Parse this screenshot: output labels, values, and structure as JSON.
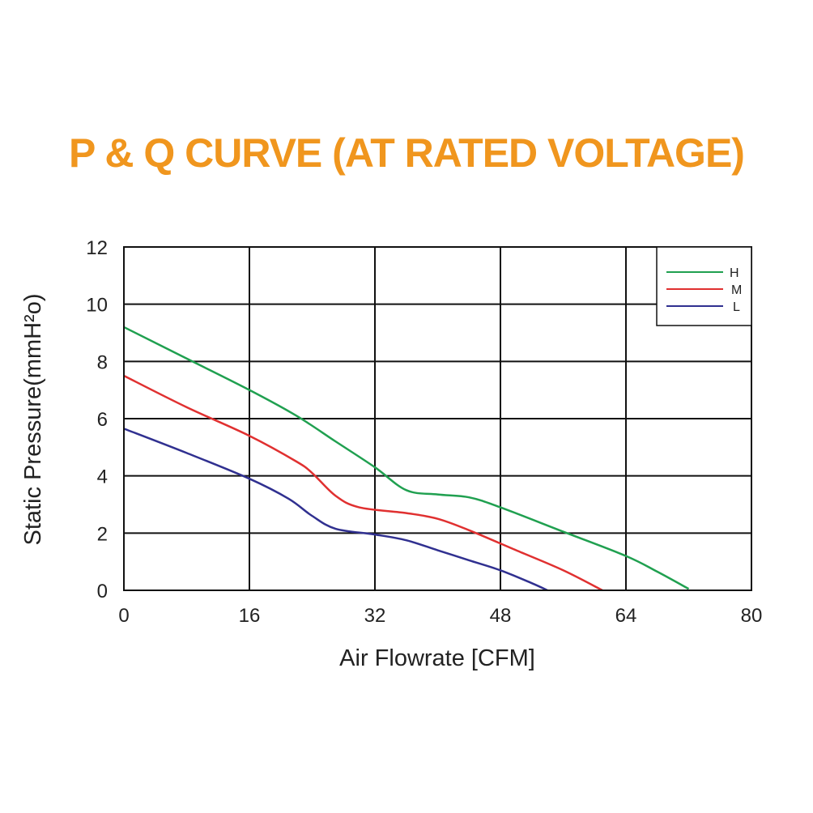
{
  "chart_data": {
    "type": "line",
    "title": "P & Q CURVE (AT RATED VOLTAGE)",
    "xlabel": "Air  Flowrate   [CFM]",
    "ylabel": "Static Pressure(mmH²o)",
    "xlim": [
      0,
      80
    ],
    "ylim": [
      0,
      12
    ],
    "xticks": [
      "0",
      "16",
      "32",
      "48",
      "64",
      "80"
    ],
    "yticks": [
      "0",
      "2",
      "4",
      "6",
      "8",
      "10",
      "12"
    ],
    "grid": true,
    "legend": "top-right",
    "series": [
      {
        "name": "H",
        "color": "#20a050",
        "points": [
          [
            0,
            9.2
          ],
          [
            8,
            8.1
          ],
          [
            16,
            7.0
          ],
          [
            22,
            6.1
          ],
          [
            27,
            5.2
          ],
          [
            32,
            4.3
          ],
          [
            36,
            3.5
          ],
          [
            40,
            3.35
          ],
          [
            44,
            3.25
          ],
          [
            48,
            2.9
          ],
          [
            56,
            2.05
          ],
          [
            64,
            1.2
          ],
          [
            68,
            0.65
          ],
          [
            72,
            0.05
          ]
        ]
      },
      {
        "name": "M",
        "color": "#e03030",
        "points": [
          [
            0,
            7.5
          ],
          [
            8,
            6.4
          ],
          [
            16,
            5.4
          ],
          [
            22,
            4.5
          ],
          [
            24,
            4.1
          ],
          [
            27,
            3.3
          ],
          [
            30,
            2.9
          ],
          [
            36,
            2.7
          ],
          [
            40,
            2.5
          ],
          [
            44,
            2.1
          ],
          [
            50,
            1.4
          ],
          [
            56,
            0.7
          ],
          [
            61,
            0.0
          ]
        ]
      },
      {
        "name": "L",
        "color": "#303090",
        "points": [
          [
            0,
            5.65
          ],
          [
            8,
            4.8
          ],
          [
            16,
            3.9
          ],
          [
            21,
            3.2
          ],
          [
            24,
            2.6
          ],
          [
            27,
            2.15
          ],
          [
            32,
            1.95
          ],
          [
            36,
            1.75
          ],
          [
            40,
            1.4
          ],
          [
            44,
            1.05
          ],
          [
            48,
            0.7
          ],
          [
            52,
            0.25
          ],
          [
            54,
            0.0
          ]
        ]
      }
    ]
  }
}
